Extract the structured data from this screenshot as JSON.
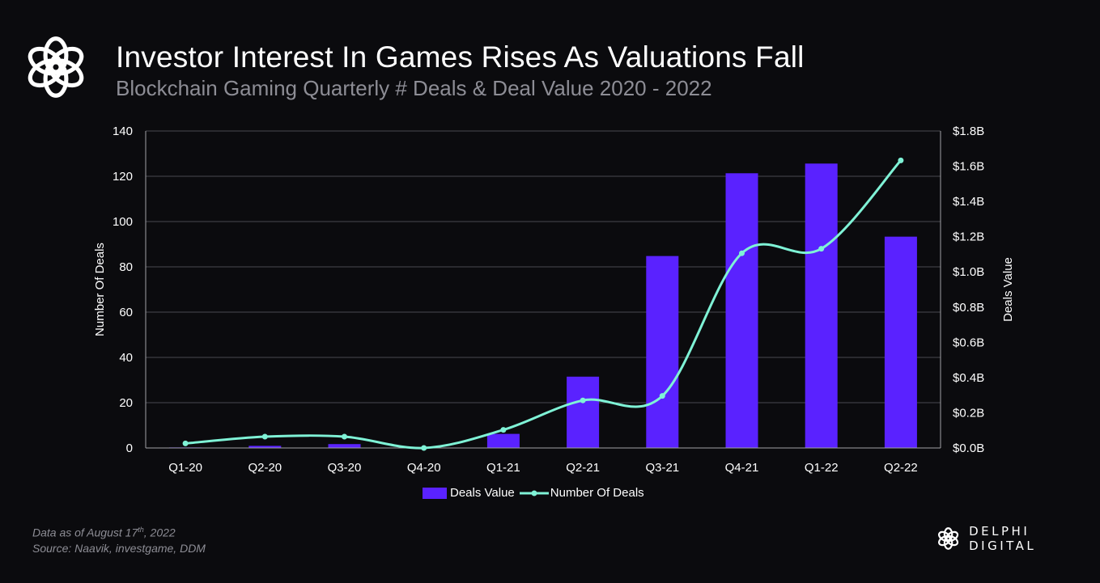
{
  "header": {
    "title": "Investor Interest In Games Rises As Valuations Fall",
    "subtitle": "Blockchain Gaming Quarterly # Deals & Deal Value 2020 - 2022",
    "logo_icon": "delphi-knot-icon"
  },
  "chart_data": {
    "type": "bar",
    "title": "Investor Interest In Games Rises As Valuations Fall",
    "subtitle": "Blockchain Gaming Quarterly # Deals & Deal Value 2020 - 2022",
    "categories": [
      "Q1-20",
      "Q2-20",
      "Q3-20",
      "Q4-20",
      "Q1-21",
      "Q2-21",
      "Q3-21",
      "Q4-21",
      "Q1-22",
      "Q2-22"
    ],
    "series": [
      {
        "name": "Deals Value",
        "type": "bar",
        "axis": "right",
        "color": "#5a22ff",
        "values": [
          0.003,
          0.012,
          0.022,
          0.0,
          0.08,
          0.405,
          1.09,
          1.56,
          1.615,
          1.2
        ]
      },
      {
        "name": "Number Of Deals",
        "type": "line",
        "axis": "left",
        "color": "#7ff2d6",
        "values": [
          2,
          5,
          5,
          0,
          8,
          21,
          23,
          86,
          88,
          127
        ]
      }
    ],
    "xlabel": "",
    "ylabel": "Number Of Deals",
    "ylabel_right": "Deals Value",
    "ylim": [
      0,
      140
    ],
    "ylim_right": [
      0,
      1.8
    ],
    "yticks": [
      "0",
      "20",
      "40",
      "60",
      "80",
      "100",
      "120",
      "140"
    ],
    "yticks_right": [
      "$0.0B",
      "$0.2B",
      "$0.4B",
      "$0.6B",
      "$0.8B",
      "$1.0B",
      "$1.2B",
      "$1.4B",
      "$1.6B",
      "$1.8B"
    ],
    "grid": true,
    "legend": "bottom-center"
  },
  "legend": {
    "bar_label": "Deals Value",
    "line_label": "Number Of Deals"
  },
  "footer": {
    "note_prefix": "Data as of August 17",
    "note_sup": "th",
    "note_suffix": ", 2022",
    "source": "Source: Naavik, investgame, DDM",
    "brand": "DELPHI DIGITAL"
  }
}
